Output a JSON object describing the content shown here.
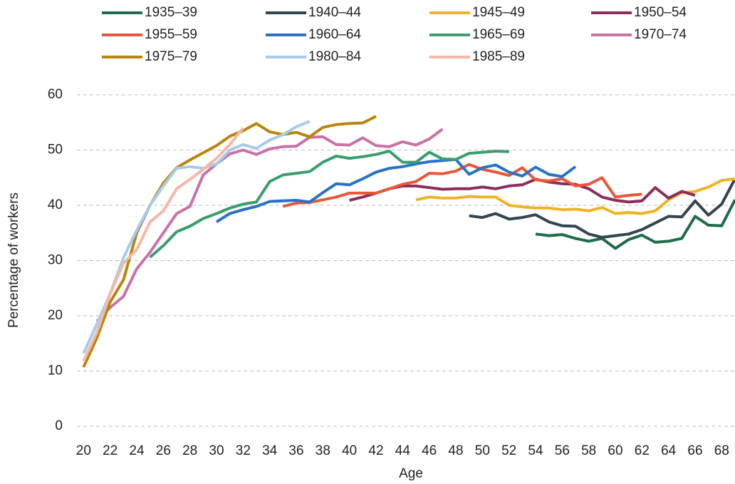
{
  "chart_data": {
    "type": "line",
    "x_label": "Age",
    "y_label": "Percentage of workers",
    "xlim": [
      19.5,
      69
    ],
    "ylim": [
      0,
      60
    ],
    "xticks": [
      20,
      22,
      24,
      26,
      28,
      30,
      32,
      34,
      36,
      38,
      40,
      42,
      44,
      46,
      48,
      50,
      52,
      54,
      56,
      58,
      60,
      62,
      64,
      66,
      68
    ],
    "yticks": [
      0,
      10,
      20,
      30,
      40,
      50,
      60
    ],
    "grid": true,
    "series": [
      {
        "name": "1935–39",
        "color": "#1f6b4b",
        "x": [
          54,
          55,
          56,
          57,
          58,
          59,
          60,
          61,
          62,
          63,
          64,
          65,
          66,
          67,
          68,
          69
        ],
        "values": [
          34.8,
          34.5,
          34.7,
          34.0,
          33.5,
          34.0,
          32.2,
          33.8,
          34.6,
          33.3,
          33.5,
          34.0,
          38.0,
          36.4,
          36.3,
          41.0
        ]
      },
      {
        "name": "1940–44",
        "color": "#33454f",
        "x": [
          49,
          50,
          51,
          52,
          53,
          54,
          55,
          56,
          57,
          58,
          59,
          60,
          61,
          62,
          63,
          64,
          65,
          66,
          67,
          68,
          69
        ],
        "values": [
          38.1,
          37.8,
          38.5,
          37.5,
          37.8,
          38.3,
          37.0,
          36.3,
          36.2,
          34.8,
          34.2,
          34.5,
          34.8,
          35.6,
          36.8,
          38.0,
          37.9,
          40.8,
          38.2,
          40.2,
          44.8
        ]
      },
      {
        "name": "1945–49",
        "color": "#f0b323",
        "x": [
          45,
          46,
          47,
          48,
          49,
          50,
          51,
          52,
          53,
          54,
          55,
          56,
          57,
          58,
          59,
          60,
          61,
          62,
          63,
          64,
          65,
          66,
          67,
          68,
          69
        ],
        "values": [
          41.0,
          41.5,
          41.3,
          41.3,
          41.6,
          41.5,
          41.5,
          40.0,
          39.7,
          39.5,
          39.5,
          39.2,
          39.3,
          39.0,
          39.6,
          38.5,
          38.7,
          38.5,
          39.0,
          41.0,
          42.3,
          42.5,
          43.3,
          44.5,
          44.8
        ]
      },
      {
        "name": "1950–54",
        "color": "#8b2d5a",
        "x": [
          40,
          41,
          42,
          43,
          44,
          45,
          46,
          47,
          48,
          49,
          50,
          51,
          52,
          53,
          54,
          55,
          56,
          57,
          58,
          59,
          60,
          61,
          62,
          63,
          64,
          65,
          66
        ],
        "values": [
          40.9,
          41.5,
          42.2,
          43.0,
          43.5,
          43.5,
          43.2,
          42.9,
          43.0,
          43.0,
          43.3,
          43.0,
          43.5,
          43.7,
          44.7,
          44.2,
          43.9,
          43.8,
          43.0,
          41.5,
          40.9,
          40.6,
          40.8,
          43.2,
          41.3,
          42.5,
          41.8
        ]
      },
      {
        "name": "1955–59",
        "color": "#e8573a",
        "x": [
          35,
          36,
          37,
          38,
          39,
          40,
          41,
          42,
          43,
          44,
          45,
          46,
          47,
          48,
          49,
          50,
          51,
          52,
          53,
          54,
          55,
          56,
          57,
          58,
          59,
          60,
          61,
          62
        ],
        "values": [
          39.8,
          40.4,
          40.5,
          41.0,
          41.5,
          42.2,
          42.2,
          42.2,
          43.0,
          43.8,
          44.3,
          45.8,
          45.7,
          46.2,
          47.4,
          46.5,
          46.0,
          45.4,
          46.8,
          44.6,
          44.4,
          44.8,
          43.5,
          43.8,
          45.0,
          41.5,
          41.8,
          42.0
        ]
      },
      {
        "name": "1960–64",
        "color": "#2872c6",
        "x": [
          30,
          31,
          32,
          33,
          34,
          35,
          36,
          37,
          38,
          39,
          40,
          41,
          42,
          43,
          44,
          45,
          46,
          47,
          48,
          49,
          50,
          51,
          52,
          53,
          54,
          55,
          56,
          57
        ],
        "values": [
          37.0,
          38.5,
          39.2,
          39.8,
          40.7,
          40.8,
          40.9,
          40.6,
          42.3,
          43.9,
          43.7,
          44.8,
          46.0,
          46.7,
          47.0,
          47.5,
          47.9,
          48.1,
          48.3,
          45.6,
          46.8,
          47.3,
          46.0,
          45.3,
          46.9,
          45.6,
          45.2,
          47.0
        ]
      },
      {
        "name": "1965–69",
        "color": "#3a9d6e",
        "x": [
          25,
          26,
          27,
          28,
          29,
          30,
          31,
          32,
          33,
          34,
          35,
          36,
          37,
          38,
          39,
          40,
          41,
          42,
          43,
          44,
          45,
          46,
          47,
          48,
          49,
          50,
          51,
          52
        ],
        "values": [
          30.6,
          32.7,
          35.2,
          36.2,
          37.6,
          38.5,
          39.5,
          40.2,
          40.6,
          44.3,
          45.5,
          45.8,
          46.1,
          47.8,
          48.9,
          48.5,
          48.8,
          49.2,
          49.8,
          47.8,
          47.8,
          49.6,
          48.4,
          48.3,
          49.4,
          49.6,
          49.8,
          49.7
        ]
      },
      {
        "name": "1970–74",
        "color": "#c872a6",
        "x": [
          21,
          22,
          23,
          24,
          25,
          26,
          27,
          28,
          29,
          30,
          31,
          32,
          33,
          34,
          35,
          36,
          37,
          38,
          39,
          40,
          41,
          42,
          43,
          44,
          45,
          46,
          47
        ],
        "values": [
          19.0,
          21.5,
          23.5,
          28.5,
          31.5,
          35.0,
          38.5,
          39.8,
          45.5,
          47.5,
          49.3,
          50.0,
          49.2,
          50.2,
          50.6,
          50.7,
          52.3,
          52.4,
          51.0,
          50.9,
          52.2,
          50.8,
          50.6,
          51.5,
          50.9,
          52.0,
          53.8
        ]
      },
      {
        "name": "1975–79",
        "color": "#b8860b",
        "x": [
          20,
          21,
          22,
          23,
          24,
          25,
          26,
          27,
          28,
          29,
          30,
          31,
          32,
          33,
          34,
          35,
          36,
          37,
          38,
          39,
          40,
          41,
          42
        ],
        "values": [
          10.7,
          16.0,
          22.5,
          26.5,
          35.0,
          40.0,
          44.0,
          46.8,
          48.2,
          49.5,
          50.8,
          52.5,
          53.5,
          54.8,
          53.3,
          52.8,
          53.2,
          52.4,
          54.1,
          54.6,
          54.8,
          54.9,
          56.1
        ]
      },
      {
        "name": "1980–84",
        "color": "#a6cbeb",
        "x": [
          20,
          21,
          22,
          23,
          24,
          25,
          26,
          27,
          28,
          29,
          30,
          31,
          32,
          33,
          34,
          35,
          36,
          37
        ],
        "values": [
          13.2,
          18.5,
          24.0,
          30.5,
          35.5,
          40.0,
          43.5,
          46.7,
          47.0,
          46.7,
          47.5,
          50.0,
          51.0,
          50.3,
          51.8,
          52.8,
          54.2,
          55.2
        ]
      },
      {
        "name": "1985–89",
        "color": "#f5b8a8",
        "x": [
          20,
          21,
          22,
          23,
          24,
          25,
          26,
          27,
          28,
          29,
          30,
          31,
          32
        ],
        "values": [
          11.8,
          17.0,
          24.0,
          29.5,
          32.0,
          37.0,
          39.0,
          43.0,
          44.7,
          46.5,
          48.5,
          51.0,
          54.0
        ]
      }
    ]
  }
}
